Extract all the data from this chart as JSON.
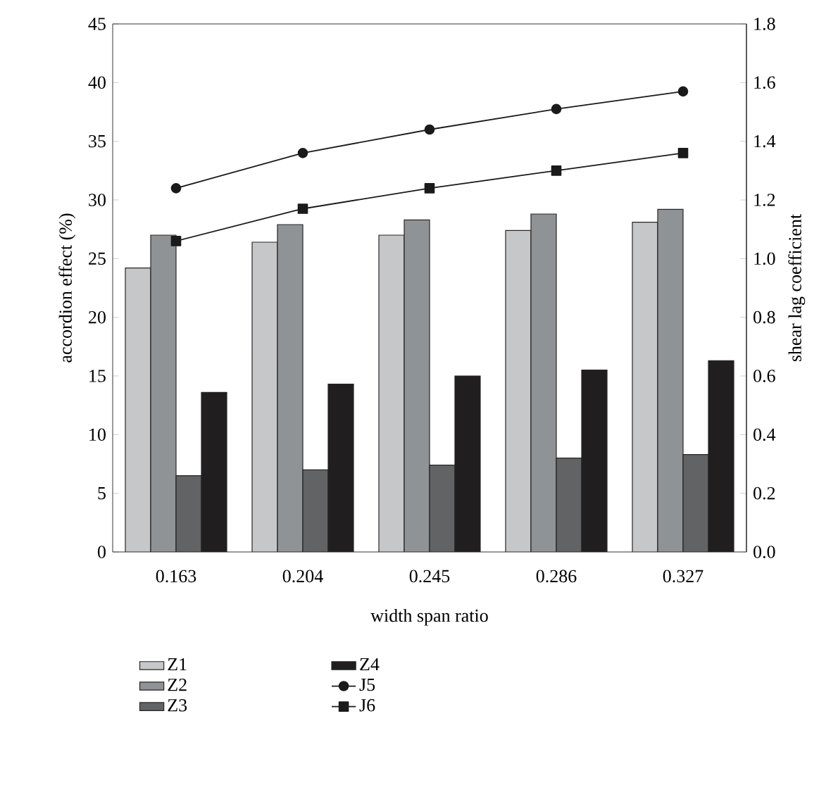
{
  "chart_data": {
    "type": "bar",
    "xlabel": "width span ratio",
    "ylabel": "accordion effect (%)",
    "y2label": "shear lag coefficient",
    "categories": [
      "0.163",
      "0.204",
      "0.245",
      "0.286",
      "0.327"
    ],
    "ylim": [
      0,
      45
    ],
    "yticks": [
      0,
      5,
      10,
      15,
      20,
      25,
      30,
      35,
      40,
      45
    ],
    "y2lim": [
      0,
      1.8
    ],
    "y2ticks": [
      {
        "value": 0,
        "label": "0.0"
      },
      {
        "value": 0.2,
        "label": "0.2"
      },
      {
        "value": 0.4,
        "label": "0.4"
      },
      {
        "value": 0.6,
        "label": "0.6"
      },
      {
        "value": 0.8,
        "label": "0.8"
      },
      {
        "value": 1,
        "label": "1.0"
      },
      {
        "value": 1.2,
        "label": "1.2"
      },
      {
        "value": 1.4,
        "label": "1.4"
      },
      {
        "value": 1.6,
        "label": "1.6"
      },
      {
        "value": 1.8,
        "label": "1.8"
      }
    ],
    "legend": "bottom",
    "series": [
      {
        "name": "Z1",
        "color": "#c6c7c9",
        "values": [
          24.2,
          26.4,
          27.0,
          27.4,
          28.1
        ]
      },
      {
        "name": "Z2",
        "color": "#909396",
        "values": [
          27.0,
          27.9,
          28.3,
          28.8,
          29.2
        ]
      },
      {
        "name": "Z3",
        "color": "#626365",
        "values": [
          6.5,
          7.0,
          7.4,
          8.0,
          8.3
        ]
      },
      {
        "name": "Z4",
        "color": "#201e1f",
        "values": [
          13.6,
          14.3,
          15.0,
          15.5,
          16.3
        ]
      },
      {
        "name": "J5",
        "type": "line",
        "axis": "y2",
        "color": "#1a1a1a",
        "marker": "circle",
        "values": [
          1.24,
          1.36,
          1.44,
          1.51,
          1.57
        ]
      },
      {
        "name": "J6",
        "type": "line",
        "axis": "y2",
        "color": "#1a1a1a",
        "marker": "square",
        "values": [
          1.06,
          1.17,
          1.24,
          1.3,
          1.36
        ]
      }
    ]
  }
}
